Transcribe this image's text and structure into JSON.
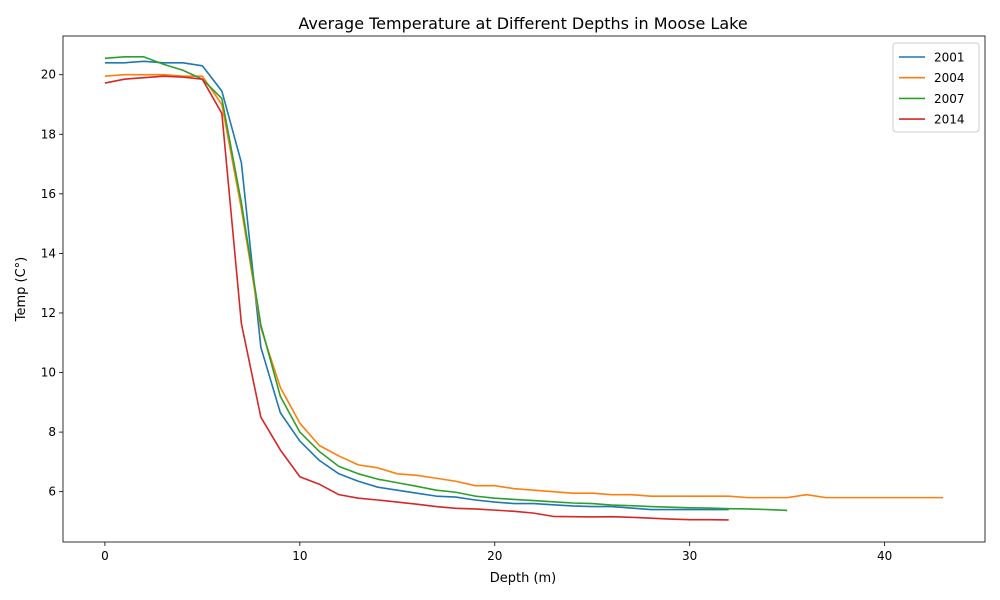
{
  "chart_data": {
    "type": "line",
    "title": "Average Temperature at Different Depths in Moose Lake",
    "xlabel": "Depth (m)",
    "ylabel": "Temp (C°)",
    "xlim": [
      -2.15,
      45.15
    ],
    "ylim": [
      4.31,
      21.3
    ],
    "xticks": [
      0,
      10,
      20,
      30,
      40
    ],
    "yticks": [
      6,
      8,
      10,
      12,
      14,
      16,
      18,
      20
    ],
    "grid": false,
    "legend_position": "upper right",
    "series": [
      {
        "name": "2001",
        "color": "#1f77b4",
        "x": [
          0,
          1,
          2,
          3,
          4,
          5,
          6,
          7,
          8,
          9,
          10,
          11,
          12,
          13,
          14,
          15,
          16,
          17,
          18,
          19,
          20,
          21,
          22,
          23,
          24,
          25,
          26,
          27,
          28,
          29,
          30,
          31,
          32
        ],
        "y": [
          20.4,
          20.4,
          20.45,
          20.4,
          20.4,
          20.3,
          19.45,
          17.05,
          10.85,
          8.65,
          7.7,
          7.05,
          6.6,
          6.35,
          6.15,
          6.05,
          5.95,
          5.85,
          5.82,
          5.72,
          5.65,
          5.6,
          5.6,
          5.56,
          5.52,
          5.5,
          5.5,
          5.45,
          5.4,
          5.4,
          5.4,
          5.4,
          5.4
        ]
      },
      {
        "name": "2004",
        "color": "#ff7f0e",
        "x": [
          0,
          1,
          2,
          3,
          4,
          5,
          6,
          7,
          8,
          9,
          10,
          11,
          12,
          13,
          14,
          15,
          16,
          17,
          18,
          19,
          20,
          21,
          22,
          23,
          24,
          25,
          26,
          27,
          28,
          29,
          30,
          31,
          32,
          33,
          34,
          35,
          36,
          37,
          38,
          39,
          40,
          41,
          42,
          43
        ],
        "y": [
          19.95,
          20.0,
          20.0,
          20.0,
          19.95,
          19.95,
          19.0,
          15.5,
          11.5,
          9.5,
          8.3,
          7.55,
          7.2,
          6.9,
          6.8,
          6.6,
          6.55,
          6.45,
          6.35,
          6.2,
          6.2,
          6.1,
          6.05,
          6.0,
          5.95,
          5.95,
          5.9,
          5.9,
          5.85,
          5.85,
          5.85,
          5.85,
          5.85,
          5.8,
          5.8,
          5.8,
          5.9,
          5.8,
          5.8,
          5.8,
          5.8,
          5.8,
          5.8,
          5.8
        ]
      },
      {
        "name": "2007",
        "color": "#2ca02c",
        "x": [
          0,
          1,
          2,
          3,
          4,
          5,
          6,
          7,
          8,
          9,
          10,
          11,
          12,
          13,
          14,
          15,
          16,
          17,
          18,
          19,
          20,
          21,
          22,
          23,
          24,
          25,
          26,
          27,
          28,
          29,
          30,
          31,
          32,
          33,
          34,
          35
        ],
        "y": [
          20.55,
          20.6,
          20.6,
          20.35,
          20.15,
          19.85,
          19.2,
          15.7,
          11.6,
          9.2,
          8.0,
          7.35,
          6.85,
          6.6,
          6.42,
          6.3,
          6.18,
          6.05,
          5.98,
          5.85,
          5.78,
          5.74,
          5.7,
          5.66,
          5.62,
          5.6,
          5.55,
          5.53,
          5.5,
          5.48,
          5.46,
          5.45,
          5.43,
          5.42,
          5.4,
          5.37
        ]
      },
      {
        "name": "2014",
        "color": "#d62728",
        "x": [
          0,
          1,
          2,
          3,
          4,
          5,
          6,
          7,
          8,
          9,
          10,
          11,
          12,
          13,
          14,
          15,
          16,
          17,
          18,
          19,
          20,
          21,
          22,
          23,
          24,
          25,
          26,
          27,
          28,
          29,
          30,
          31,
          32
        ],
        "y": [
          19.72,
          19.85,
          19.9,
          19.95,
          19.92,
          19.85,
          18.7,
          11.65,
          8.5,
          7.4,
          6.5,
          6.25,
          5.9,
          5.78,
          5.72,
          5.65,
          5.58,
          5.5,
          5.44,
          5.42,
          5.38,
          5.34,
          5.28,
          5.17,
          5.16,
          5.15,
          5.16,
          5.14,
          5.11,
          5.08,
          5.06,
          5.06,
          5.05
        ]
      }
    ]
  }
}
